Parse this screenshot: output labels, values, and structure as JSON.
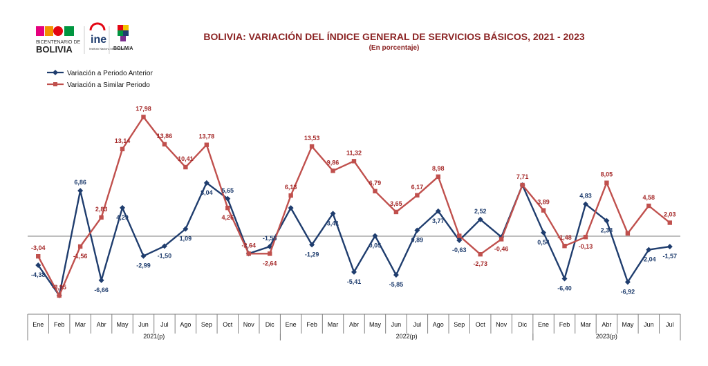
{
  "logos": {
    "bicentenario_small": "BICENTENARIO DE",
    "bicentenario_big": "BOLIVIA",
    "ine": "ine",
    "ine_sub": "Instituto Nacional de Estadística",
    "estado": "BOLIVIA"
  },
  "chart_data": {
    "type": "line",
    "title": "BOLIVIA: VARIACIÓN DEL ÍNDICE GENERAL DE SERVICIOS BÁSICOS, 2021 - 2023",
    "subtitle": "(En porcentaje)",
    "xlabel": "",
    "ylabel": "",
    "ylim": [
      -11,
      20
    ],
    "grid": false,
    "legend_position": "top-left",
    "categories": [
      "Ene",
      "Feb",
      "Mar",
      "Abr",
      "May",
      "Jun",
      "Jul",
      "Ago",
      "Sep",
      "Oct",
      "Nov",
      "Dic",
      "Ene",
      "Feb",
      "Mar",
      "Abr",
      "May",
      "Jun",
      "Jul",
      "Ago",
      "Sep",
      "Oct",
      "Nov",
      "Dic",
      "Ene",
      "Feb",
      "Mar",
      "Abr",
      "May",
      "Jun",
      "Jul"
    ],
    "year_groups": [
      {
        "label": "2021(p)",
        "start": 0,
        "end": 11
      },
      {
        "label": "2022(p)",
        "start": 12,
        "end": 23
      },
      {
        "label": "2023(p)",
        "start": 24,
        "end": 30
      }
    ],
    "series": [
      {
        "name": "Variación a Periodo Anterior",
        "color": "#1f3d6e",
        "marker": "diamond",
        "values": [
          -4.38,
          -8.95,
          6.86,
          -6.66,
          4.29,
          -2.99,
          -1.5,
          1.09,
          8.04,
          5.65,
          -2.64,
          -1.56,
          4.26,
          -1.29,
          3.41,
          -5.41,
          0.05,
          -5.85,
          0.89,
          3.77,
          -0.63,
          2.52,
          -0.13,
          7.71,
          0.54,
          -6.4,
          4.83,
          2.33,
          -6.92,
          -2.04,
          -1.57
        ],
        "labels": [
          "-4,38",
          "",
          "6,86",
          "-6,66",
          "4,29",
          "-2,99",
          "-1,50",
          "1,09",
          "8,04",
          "5,65",
          "",
          "-1,56",
          "",
          "-1,29",
          "3,41",
          "-5,41",
          "0,05",
          "-5,85",
          "0,89",
          "3,77",
          "-0,63",
          "2,52",
          "",
          "",
          "0,54",
          "-6,40",
          "4,83",
          "2,33",
          "-6,92",
          "-2,04",
          "-1,57"
        ]
      },
      {
        "name": "Variación a Similar Periodo",
        "color": "#c0504d",
        "marker": "square",
        "values": [
          -3.04,
          -8.95,
          -1.56,
          2.83,
          13.14,
          17.98,
          13.86,
          10.41,
          13.78,
          4.26,
          -2.64,
          -2.64,
          6.13,
          13.53,
          9.86,
          11.32,
          6.79,
          3.65,
          6.17,
          8.98,
          0.05,
          -2.73,
          -0.46,
          7.71,
          3.89,
          -1.48,
          -0.13,
          8.05,
          0.42,
          4.58,
          2.03
        ],
        "labels": [
          "-3,04",
          "-8,95",
          "-1,56",
          "2,83",
          "13,14",
          "17,98",
          "13,86",
          "10,41",
          "13,78",
          "4,26",
          "-2,64",
          "-2,64",
          "6,13",
          "13,53",
          "9,86",
          "11,32",
          "6,79",
          "3,65",
          "6,17",
          "8,98",
          "",
          "-2,73",
          "-0,46",
          "7,71",
          "3,89",
          "-1,48",
          "-0,13",
          "8,05",
          "",
          "4,58",
          "2,03"
        ]
      }
    ]
  }
}
